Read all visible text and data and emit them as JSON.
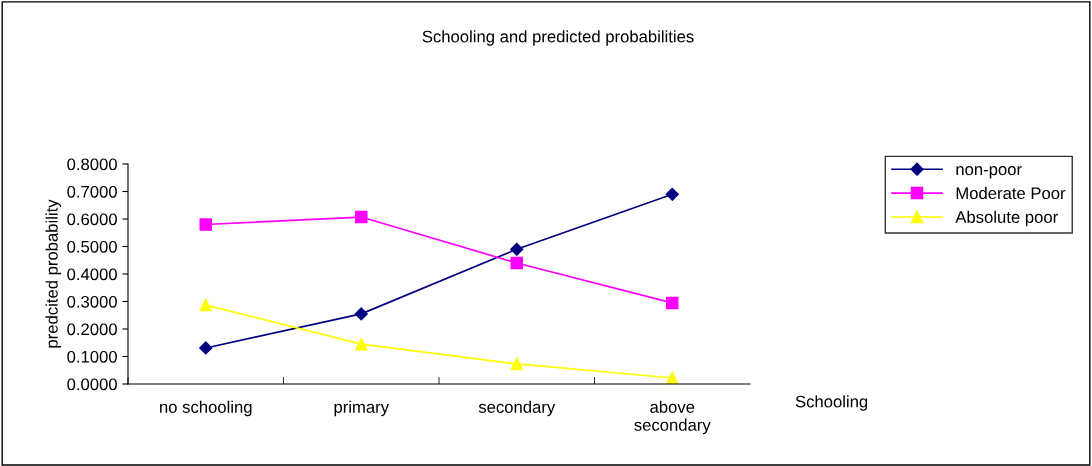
{
  "chart_data": {
    "type": "line",
    "title": "Schooling and predicted probabilities",
    "xlabel": "Schooling",
    "ylabel": "predcited probability",
    "categories": [
      "no schooling",
      "primary",
      "secondary",
      "above secondary"
    ],
    "series": [
      {
        "name": "non-poor",
        "color": "#000080",
        "marker": "diamond",
        "values": [
          0.131,
          0.255,
          0.49,
          0.69
        ]
      },
      {
        "name": "Moderate Poor",
        "color": "#ff00ff",
        "marker": "square",
        "values": [
          0.58,
          0.607,
          0.44,
          0.295
        ]
      },
      {
        "name": "Absolute poor",
        "color": "#ffff00",
        "marker": "triangle",
        "values": [
          0.287,
          0.145,
          0.073,
          0.022
        ]
      }
    ],
    "ylim": [
      0,
      0.8
    ],
    "yticks": [
      {
        "value": 0,
        "label": "0.0000"
      },
      {
        "value": 0.1,
        "label": "0.1000"
      },
      {
        "value": 0.2,
        "label": "0.2000"
      },
      {
        "value": 0.3,
        "label": "0.3000"
      },
      {
        "value": 0.4,
        "label": "0.4000"
      },
      {
        "value": 0.5,
        "label": "0.5000"
      },
      {
        "value": 0.6,
        "label": "0.6000"
      },
      {
        "value": 0.7,
        "label": "0.7000"
      },
      {
        "value": 0.8,
        "label": "0.8000"
      }
    ],
    "grid": false,
    "legend": "right",
    "line_style": "solid"
  }
}
